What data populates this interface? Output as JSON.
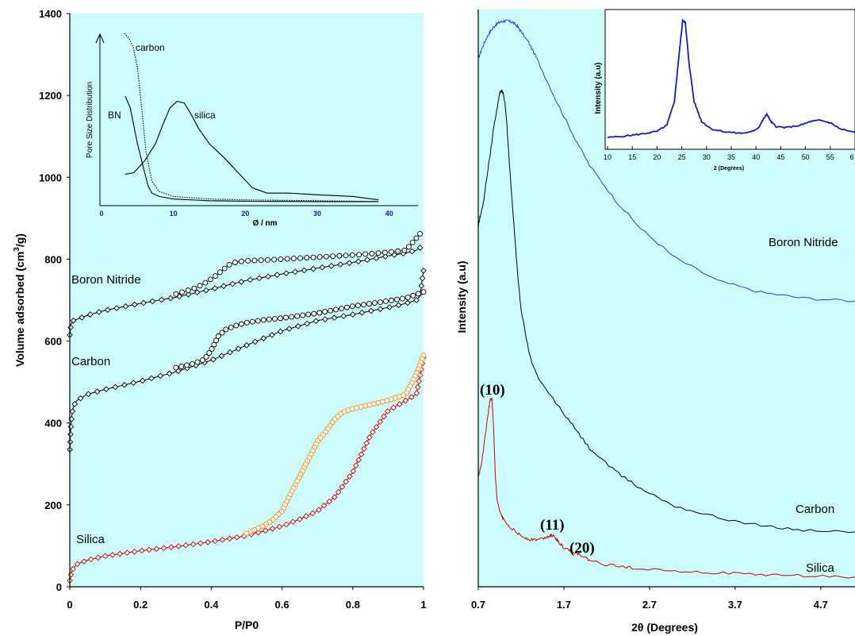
{
  "chart_data": [
    {
      "type": "scatter",
      "panel": "left",
      "xlabel": "P/P0",
      "ylabel": "Volume adsorbed (cm³/g)",
      "ylabel_main": "Volume adsorbed (cm",
      "ylabel_sup": "3",
      "ylabel_end": "/g)",
      "xlim": [
        0,
        1
      ],
      "ylim": [
        0,
        1400
      ],
      "xticks": [
        "0",
        "0.2",
        "0.4",
        "0.6",
        "0.8",
        "1"
      ],
      "yticks": [
        "0",
        "200",
        "400",
        "600",
        "800",
        "1000",
        "1200",
        "1400"
      ],
      "series_labels": [
        "Boron Nitride",
        "Carbon",
        "Silica"
      ],
      "series": [
        {
          "name": "Boron Nitride",
          "branch": "adsorption",
          "marker": "diamond",
          "color": "#000000",
          "x": [
            0,
            0.003,
            0.01,
            0.05,
            0.1,
            0.2,
            0.3,
            0.4,
            0.5,
            0.6,
            0.7,
            0.8,
            0.9,
            0.95,
            0.98,
            0.99
          ],
          "y": [
            615,
            640,
            650,
            663,
            675,
            692,
            707,
            727,
            748,
            764,
            778,
            792,
            808,
            815,
            822,
            828
          ]
        },
        {
          "name": "Boron Nitride",
          "branch": "desorption",
          "marker": "circle",
          "color": "#1f3fd6",
          "x": [
            0.99,
            0.95,
            0.9,
            0.8,
            0.7,
            0.6,
            0.5,
            0.47,
            0.45,
            0.43,
            0.41,
            0.39,
            0.37,
            0.35,
            0.3
          ],
          "y": [
            862,
            822,
            817,
            810,
            805,
            800,
            796,
            793,
            786,
            772,
            758,
            746,
            736,
            728,
            715
          ]
        },
        {
          "name": "Carbon",
          "branch": "adsorption",
          "marker": "diamond",
          "color": "#000000",
          "x": [
            0,
            0.003,
            0.006,
            0.01,
            0.02,
            0.05,
            0.1,
            0.15,
            0.2,
            0.3,
            0.4,
            0.5,
            0.6,
            0.7,
            0.8,
            0.9,
            0.95,
            0.98,
            0.99,
            1.0
          ],
          "y": [
            335,
            390,
            420,
            440,
            455,
            470,
            482,
            492,
            502,
            525,
            553,
            590,
            625,
            650,
            665,
            682,
            692,
            700,
            710,
            772
          ]
        },
        {
          "name": "Carbon",
          "branch": "desorption",
          "marker": "circle",
          "color": "#000000",
          "x": [
            1.0,
            0.95,
            0.9,
            0.8,
            0.7,
            0.6,
            0.55,
            0.5,
            0.47,
            0.44,
            0.42,
            0.4,
            0.38,
            0.35,
            0.3
          ],
          "y": [
            720,
            705,
            698,
            685,
            668,
            656,
            652,
            645,
            638,
            628,
            612,
            578,
            555,
            545,
            535
          ]
        },
        {
          "name": "Silica",
          "branch": "adsorption",
          "marker": "diamond",
          "color": "#cc0000",
          "x": [
            0,
            0.002,
            0.005,
            0.01,
            0.02,
            0.05,
            0.1,
            0.2,
            0.3,
            0.4,
            0.5,
            0.6,
            0.65,
            0.7,
            0.75,
            0.8,
            0.85,
            0.9,
            0.95,
            0.98,
            1.0
          ],
          "y": [
            15,
            25,
            35,
            45,
            55,
            65,
            75,
            88,
            98,
            110,
            125,
            148,
            165,
            185,
            220,
            280,
            370,
            430,
            455,
            470,
            560
          ]
        },
        {
          "name": "Silica",
          "branch": "desorption",
          "marker": "circle",
          "color": "#ff8a00",
          "x": [
            1.0,
            0.98,
            0.95,
            0.9,
            0.85,
            0.8,
            0.77,
            0.75,
            0.72,
            0.7,
            0.68,
            0.65,
            0.62,
            0.6,
            0.57,
            0.55,
            0.5
          ],
          "y": [
            565,
            520,
            470,
            455,
            445,
            435,
            425,
            410,
            375,
            355,
            320,
            270,
            220,
            185,
            160,
            150,
            130
          ]
        }
      ]
    },
    {
      "type": "line",
      "panel": "left-inset",
      "xlabel": "Ø / nm",
      "ylabel": "Pore Size Distribution",
      "xticks": [
        "0",
        "10",
        "20",
        "30",
        "40"
      ],
      "xlim": [
        0,
        44
      ],
      "ylim": [
        0,
        1
      ],
      "series_labels": [
        "carbon",
        "BN",
        "silica"
      ],
      "series": [
        {
          "name": "carbon",
          "style": "dotted",
          "x": [
            3.2,
            3.8,
            4.4,
            5.0,
            5.6,
            6.2,
            7,
            8,
            10,
            15,
            20,
            30,
            38.5
          ],
          "y": [
            1.0,
            0.97,
            0.92,
            0.8,
            0.55,
            0.3,
            0.13,
            0.07,
            0.04,
            0.025,
            0.02,
            0.015,
            0.01
          ]
        },
        {
          "name": "BN",
          "style": "solid",
          "x": [
            3.3,
            4,
            5,
            6,
            6.5,
            7,
            8,
            10,
            15,
            20,
            30,
            38.5
          ],
          "y": [
            0.63,
            0.56,
            0.35,
            0.18,
            0.1,
            0.06,
            0.04,
            0.025,
            0.015,
            0.012,
            0.01,
            0.01
          ]
        },
        {
          "name": "silica",
          "style": "solid",
          "x": [
            3.3,
            4.5,
            6,
            7.5,
            8.5,
            9.5,
            10.5,
            11.5,
            12.5,
            13.5,
            15,
            17,
            19,
            21,
            23,
            26,
            30,
            35,
            38.5
          ],
          "y": [
            0.17,
            0.18,
            0.25,
            0.35,
            0.46,
            0.56,
            0.6,
            0.59,
            0.52,
            0.44,
            0.35,
            0.27,
            0.18,
            0.09,
            0.06,
            0.06,
            0.05,
            0.04,
            0.02
          ]
        }
      ]
    },
    {
      "type": "line",
      "panel": "right",
      "xlabel": "2θ (Degrees)",
      "ylabel": "Intensity (a.u)",
      "xlim": [
        0.7,
        5.1
      ],
      "ylim": [
        0,
        1
      ],
      "xticks": [
        "0.7",
        "1.7",
        "2.7",
        "3.7",
        "4.7"
      ],
      "series_labels": [
        "Boron Nitride",
        "Carbon",
        "Silica"
      ],
      "annotations": [
        "(10)",
        "(11)",
        "(20)"
      ],
      "series": [
        {
          "name": "Boron Nitride",
          "color": "#1f3fd6",
          "x": [
            0.7,
            0.75,
            0.8,
            0.85,
            0.9,
            0.95,
            1.0,
            1.05,
            1.1,
            1.15,
            1.2,
            1.3,
            1.4,
            1.6,
            1.8,
            2.0,
            2.3,
            2.6,
            3.0,
            3.5,
            4.0,
            4.5,
            5.1
          ],
          "y": [
            0.915,
            0.935,
            0.952,
            0.964,
            0.973,
            0.978,
            0.98,
            0.98,
            0.978,
            0.972,
            0.962,
            0.94,
            0.91,
            0.845,
            0.785,
            0.73,
            0.67,
            0.62,
            0.57,
            0.53,
            0.51,
            0.5,
            0.495
          ]
        },
        {
          "name": "Carbon",
          "color": "#000000",
          "x": [
            0.7,
            0.72,
            0.76,
            0.8,
            0.84,
            0.88,
            0.92,
            0.95,
            0.97,
            0.99,
            1.01,
            1.03,
            1.06,
            1.1,
            1.15,
            1.2,
            1.3,
            1.4,
            1.6,
            1.8,
            2.0,
            2.3,
            2.6,
            3.0,
            3.5,
            4.0,
            4.5,
            5.1
          ],
          "y": [
            0.625,
            0.64,
            0.665,
            0.71,
            0.75,
            0.795,
            0.83,
            0.855,
            0.86,
            0.855,
            0.84,
            0.81,
            0.74,
            0.66,
            0.56,
            0.48,
            0.4,
            0.36,
            0.32,
            0.28,
            0.24,
            0.2,
            0.17,
            0.14,
            0.12,
            0.106,
            0.098,
            0.095
          ]
        },
        {
          "name": "Silica",
          "color": "#cc0000",
          "x": [
            0.7,
            0.74,
            0.78,
            0.81,
            0.84,
            0.86,
            0.88,
            0.9,
            0.92,
            0.95,
            1.0,
            1.1,
            1.2,
            1.3,
            1.4,
            1.5,
            1.55,
            1.6,
            1.65,
            1.7,
            1.8,
            1.9,
            2.0,
            2.2,
            2.5,
            3.0,
            3.5,
            4.0,
            4.5,
            5.1
          ],
          "y": [
            0.19,
            0.215,
            0.26,
            0.295,
            0.325,
            0.325,
            0.27,
            0.19,
            0.15,
            0.13,
            0.115,
            0.1,
            0.088,
            0.082,
            0.082,
            0.086,
            0.09,
            0.085,
            0.075,
            0.068,
            0.062,
            0.055,
            0.046,
            0.038,
            0.033,
            0.028,
            0.024,
            0.021,
            0.019,
            0.017
          ]
        }
      ]
    },
    {
      "type": "line",
      "panel": "right-inset",
      "xlabel": "2 (Degrees)",
      "ylabel": "Intensity (a.u)",
      "xlim": [
        10,
        60
      ],
      "ylim": [
        0,
        1
      ],
      "xticks": [
        "10",
        "15",
        "20",
        "25",
        "30",
        "35",
        "40",
        "45",
        "50",
        "55",
        "6"
      ],
      "series": [
        {
          "name": "",
          "color": "#1a1ab8",
          "x": [
            10,
            14,
            17,
            20,
            22,
            23.5,
            24.5,
            25.2,
            25.7,
            26.5,
            27.5,
            29,
            31,
            34,
            37,
            39,
            40.5,
            41.5,
            42.2,
            43,
            44,
            46,
            49,
            51,
            53,
            55,
            57,
            60
          ],
          "y": [
            0.03,
            0.045,
            0.06,
            0.08,
            0.13,
            0.32,
            0.72,
            0.98,
            0.96,
            0.62,
            0.32,
            0.16,
            0.1,
            0.075,
            0.065,
            0.075,
            0.11,
            0.18,
            0.22,
            0.16,
            0.12,
            0.11,
            0.13,
            0.16,
            0.17,
            0.15,
            0.1,
            0.07
          ]
        }
      ]
    }
  ]
}
